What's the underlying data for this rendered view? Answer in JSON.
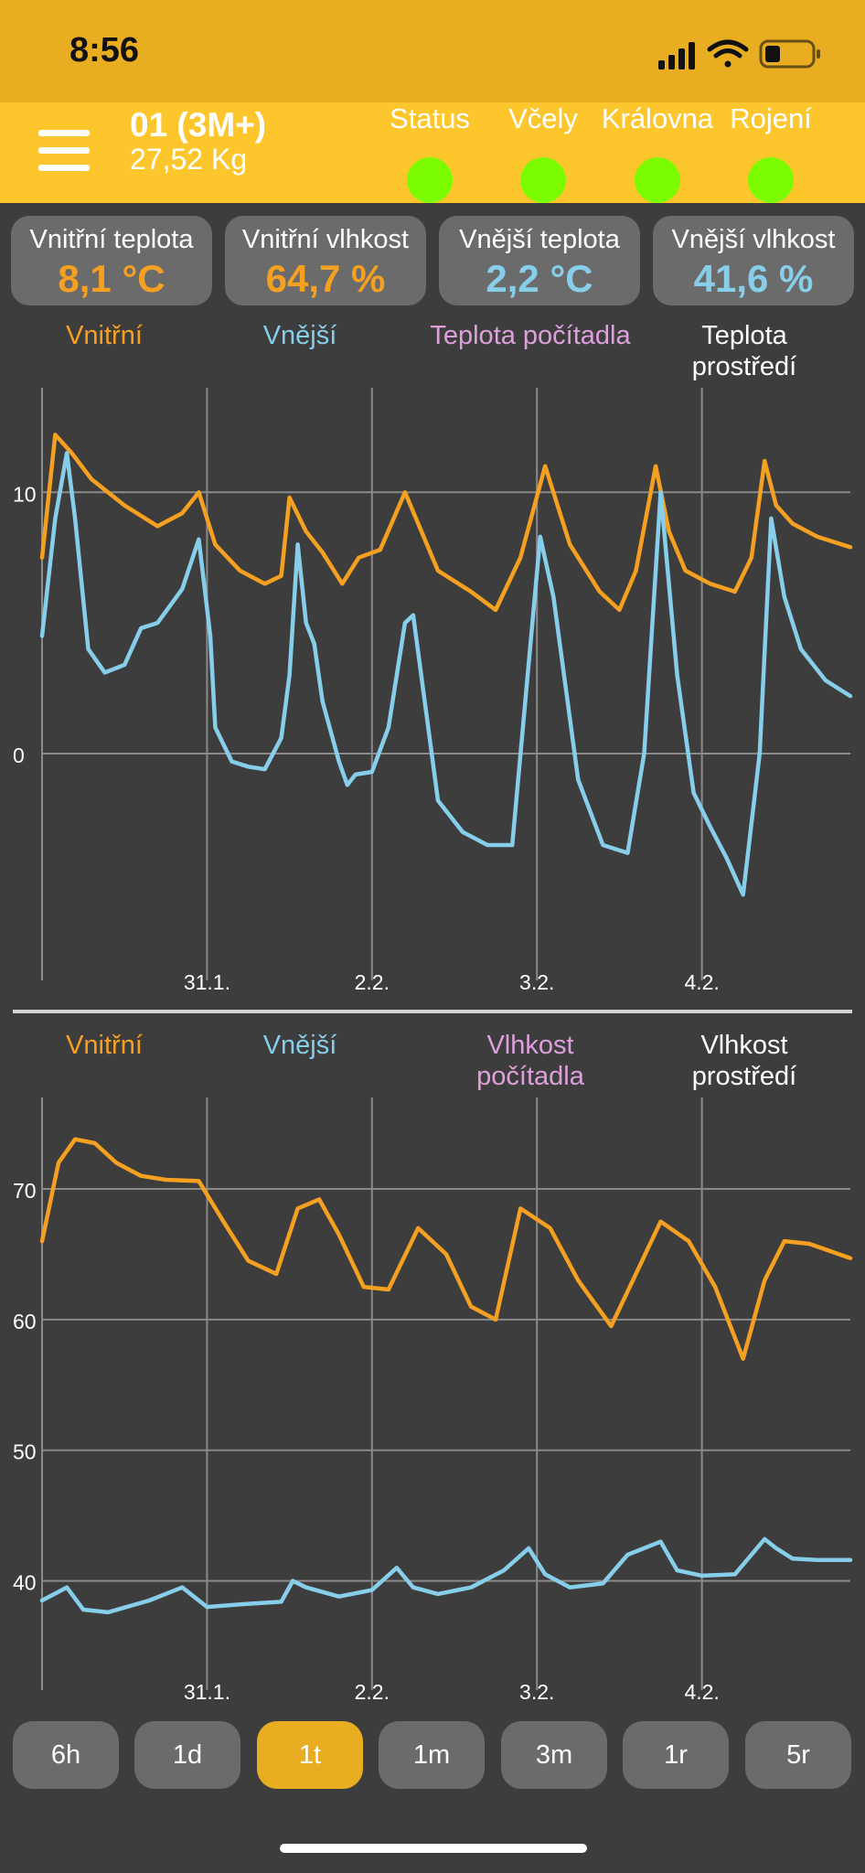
{
  "status_bar": {
    "time": "8:56"
  },
  "header": {
    "hive_name": "01 (3M+)",
    "weight": "27,52 Kg",
    "indicators": [
      {
        "label": "Status",
        "color": "#7cfc00"
      },
      {
        "label": "Včely",
        "color": "#7cfc00"
      },
      {
        "label": "Královna",
        "color": "#7cfc00"
      },
      {
        "label": "Rojení",
        "color": "#7cfc00"
      }
    ]
  },
  "cards": [
    {
      "title": "Vnitřní teplota",
      "value": "8,1 °C",
      "color": "#f5a020"
    },
    {
      "title": "Vnitřní vlhkost",
      "value": "64,7 %",
      "color": "#f5a020"
    },
    {
      "title": "Vnější teplota",
      "value": "2,2 °C",
      "color": "#87ceeb"
    },
    {
      "title": "Vnější vlhkost",
      "value": "41,6 %",
      "color": "#87ceeb"
    }
  ],
  "colors": {
    "inner": "#f5a020",
    "outer": "#87ceeb",
    "counter": "#dda0dd",
    "ambient": "#ffffff"
  },
  "temp_legend": {
    "inner": "Vnitřní",
    "outer": "Vnější",
    "counter": "Teplota počítadla",
    "ambient": "Teplota prostředí"
  },
  "hum_legend": {
    "inner": "Vnitřní",
    "outer": "Vnější",
    "counter": "Vlhkost počítadla",
    "ambient": "Vlhkost prostředí"
  },
  "chart_data": [
    {
      "type": "line",
      "ylim": [
        -7,
        14
      ],
      "yticks": [
        0,
        10
      ],
      "xlim": [
        0,
        4.9
      ],
      "xticks": [
        {
          "x": 1,
          "label": "31.1."
        },
        {
          "x": 2,
          "label": "2.2."
        },
        {
          "x": 3,
          "label": "3.2."
        },
        {
          "x": 4,
          "label": "4.2."
        }
      ],
      "series": [
        {
          "name": "Vnitřní",
          "x": [
            0,
            0.08,
            0.18,
            0.3,
            0.5,
            0.7,
            0.85,
            0.95,
            1.05,
            1.2,
            1.35,
            1.45,
            1.5,
            1.6,
            1.7,
            1.82,
            1.92,
            2.05,
            2.2,
            2.4,
            2.6,
            2.75,
            2.9,
            3.05,
            3.2,
            3.38,
            3.5,
            3.6,
            3.72,
            3.8,
            3.9,
            4.05,
            4.2,
            4.3,
            4.38,
            4.45,
            4.55,
            4.7,
            4.9
          ],
          "y": [
            7.5,
            12.2,
            11.5,
            10.5,
            9.5,
            8.7,
            9.2,
            10,
            8,
            7,
            6.5,
            6.8,
            9.8,
            8.5,
            7.7,
            6.5,
            7.5,
            7.8,
            10,
            7,
            6.2,
            5.5,
            7.5,
            11,
            8,
            6.2,
            5.5,
            7,
            11,
            8.5,
            7,
            6.5,
            6.2,
            7.5,
            11.2,
            9.5,
            8.8,
            8.3,
            7.9
          ]
        },
        {
          "name": "Vnější",
          "x": [
            0,
            0.08,
            0.15,
            0.2,
            0.28,
            0.38,
            0.5,
            0.6,
            0.7,
            0.85,
            0.95,
            1.02,
            1.05,
            1.15,
            1.25,
            1.35,
            1.45,
            1.5,
            1.55,
            1.6,
            1.65,
            1.7,
            1.8,
            1.85,
            1.9,
            2.0,
            2.1,
            2.2,
            2.25,
            2.4,
            2.55,
            2.7,
            2.85,
            3.02,
            3.1,
            3.25,
            3.4,
            3.55,
            3.65,
            3.75,
            3.85,
            3.95,
            4.05,
            4.15,
            4.25,
            4.35,
            4.42,
            4.5,
            4.6,
            4.75,
            4.9
          ],
          "y": [
            4.5,
            9,
            11.5,
            9,
            4,
            3.1,
            3.4,
            4.8,
            5,
            6.3,
            8.2,
            4.5,
            1,
            -0.3,
            -0.5,
            -0.6,
            0.6,
            3,
            8,
            5,
            4.2,
            2,
            -0.3,
            -1.2,
            -0.8,
            -0.7,
            1,
            5,
            5.3,
            -1.8,
            -3,
            -3.5,
            -3.5,
            8.3,
            6,
            -1,
            -3.5,
            -3.8,
            0,
            10,
            3,
            -1.5,
            -2.8,
            -4,
            -5.4,
            0,
            9,
            6,
            4,
            2.8,
            2.2
          ]
        }
      ]
    },
    {
      "type": "line",
      "ylim": [
        35,
        77
      ],
      "yticks": [
        40,
        50,
        60,
        70
      ],
      "xlim": [
        0,
        4.9
      ],
      "xticks": [
        {
          "x": 1,
          "label": "31.1."
        },
        {
          "x": 2,
          "label": "2.2."
        },
        {
          "x": 3,
          "label": "3.2."
        },
        {
          "x": 4,
          "label": "4.2."
        }
      ],
      "series": [
        {
          "name": "Vnitřní",
          "x": [
            0,
            0.1,
            0.2,
            0.32,
            0.45,
            0.6,
            0.75,
            0.95,
            1.1,
            1.25,
            1.42,
            1.55,
            1.68,
            1.8,
            1.95,
            2.1,
            2.28,
            2.45,
            2.6,
            2.75,
            2.9,
            3.08,
            3.25,
            3.45,
            3.6,
            3.75,
            3.92,
            4.08,
            4.25,
            4.38,
            4.5,
            4.65,
            4.9
          ],
          "y": [
            66,
            72,
            73.8,
            73.5,
            72,
            71,
            70.7,
            70.6,
            67.5,
            64.5,
            63.5,
            68.5,
            69.2,
            66.5,
            62.5,
            62.3,
            67,
            65,
            61,
            60,
            68.5,
            67,
            63,
            59.5,
            63.5,
            67.5,
            66,
            62.5,
            57,
            63,
            66,
            65.8,
            64.7
          ]
        },
        {
          "name": "Vnější",
          "x": [
            0,
            0.15,
            0.25,
            0.4,
            0.65,
            0.85,
            1.0,
            1.2,
            1.45,
            1.52,
            1.6,
            1.8,
            2.0,
            2.15,
            2.25,
            2.4,
            2.6,
            2.8,
            2.95,
            3.05,
            3.2,
            3.4,
            3.55,
            3.75,
            3.85,
            4.0,
            4.2,
            4.38,
            4.45,
            4.55,
            4.7,
            4.9
          ],
          "y": [
            38.5,
            39.5,
            37.8,
            37.6,
            38.5,
            39.5,
            38,
            38.2,
            38.4,
            40,
            39.5,
            38.8,
            39.3,
            41,
            39.5,
            39,
            39.5,
            40.8,
            42.5,
            40.5,
            39.5,
            39.8,
            42,
            43,
            40.8,
            40.4,
            40.5,
            43.2,
            42.5,
            41.7,
            41.6,
            41.6
          ]
        }
      ]
    }
  ],
  "range_buttons": [
    {
      "label": "6h",
      "active": false
    },
    {
      "label": "1d",
      "active": false
    },
    {
      "label": "1t",
      "active": true
    },
    {
      "label": "1m",
      "active": false
    },
    {
      "label": "3m",
      "active": false
    },
    {
      "label": "1r",
      "active": false
    },
    {
      "label": "5r",
      "active": false
    }
  ]
}
